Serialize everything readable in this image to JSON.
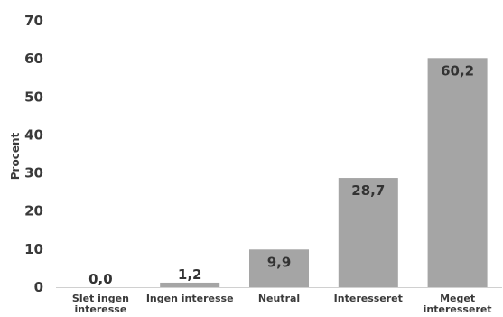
{
  "chart_data": {
    "type": "bar",
    "title": "",
    "xlabel": "",
    "ylabel": "Procent",
    "categories": [
      [
        "Slet ingen",
        "interesse"
      ],
      [
        "Ingen interesse"
      ],
      [
        "Neutral"
      ],
      [
        "Interesseret"
      ],
      [
        "Meget",
        "interesseret"
      ]
    ],
    "values": [
      0.0,
      1.2,
      9.9,
      28.7,
      60.2
    ],
    "data_labels": [
      "0,0",
      "1,2",
      "9,9",
      "28,7",
      "60,2"
    ],
    "ylim": [
      0,
      70
    ],
    "yticks": [
      0,
      10,
      20,
      30,
      40,
      50,
      60,
      70
    ],
    "grid": false,
    "bar_color": "#a5a5a5",
    "axis_color": "#d0d0d0"
  }
}
